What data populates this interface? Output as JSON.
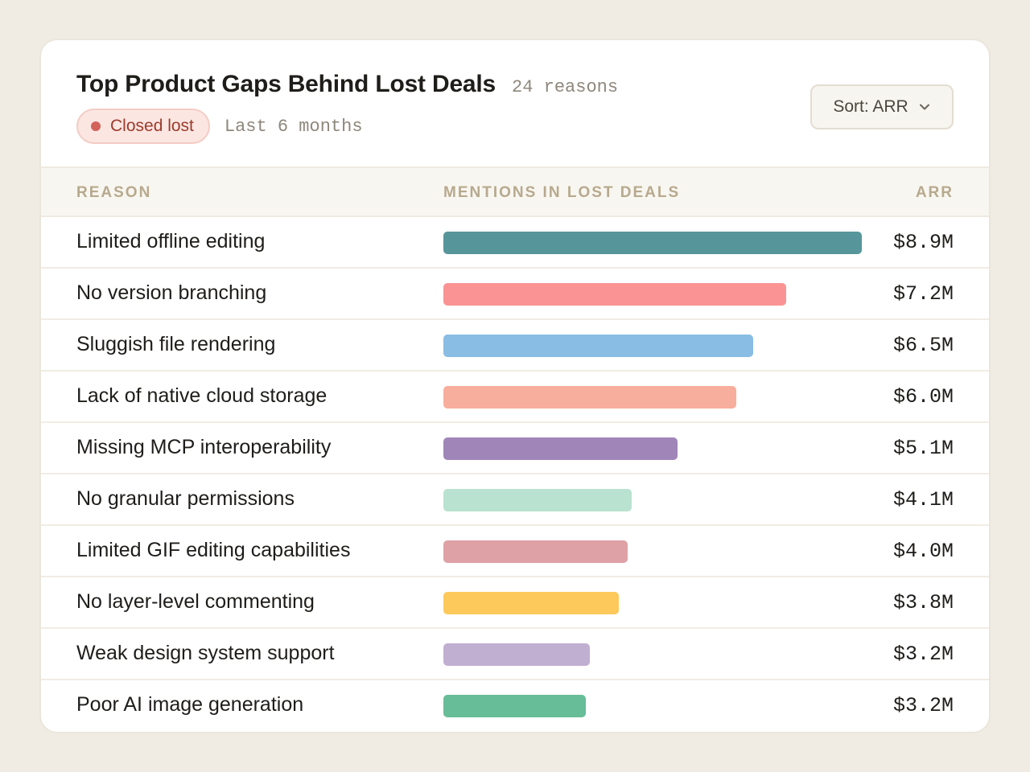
{
  "header": {
    "title": "Top Product Gaps Behind Lost Deals",
    "count": "24 reasons",
    "badge": "Closed lost",
    "period": "Last 6 months",
    "sort_label": "Sort: ARR"
  },
  "columns": {
    "reason": "REASON",
    "mentions": "MENTIONS IN LOST DEALS",
    "arr": "ARR"
  },
  "colors": {
    "badge_dot": "#d2635a",
    "badge_text": "#9d3a2b",
    "header_label": "#b7a98e"
  },
  "chart_data": {
    "type": "bar",
    "title": "Mentions in lost deals",
    "xlabel": "",
    "ylabel": "",
    "categories": [
      "Limited offline editing",
      "No version branching",
      "Sluggish file rendering",
      "Lack of native cloud storage",
      "Missing MCP interoperability",
      "No granular permissions",
      "Limited GIF editing capabilities",
      "No layer-level commenting",
      "Weak design system support",
      "Poor AI image generation"
    ],
    "values": [
      100,
      82,
      74,
      70,
      56,
      45,
      44,
      42,
      35,
      34
    ],
    "ylim": [
      0,
      100
    ],
    "labels": [
      "$8.9M",
      "$7.2M",
      "$6.5M",
      "$6.0M",
      "$5.1M",
      "$4.1M",
      "$4.0M",
      "$3.8M",
      "$3.2M",
      "$3.2M"
    ],
    "colors": [
      "#56969a",
      "#fa9393",
      "#89bde3",
      "#f8ae9c",
      "#a086b8",
      "#b9e2d0",
      "#dea1a6",
      "#fec95b",
      "#c1afd2",
      "#67bd98"
    ]
  }
}
